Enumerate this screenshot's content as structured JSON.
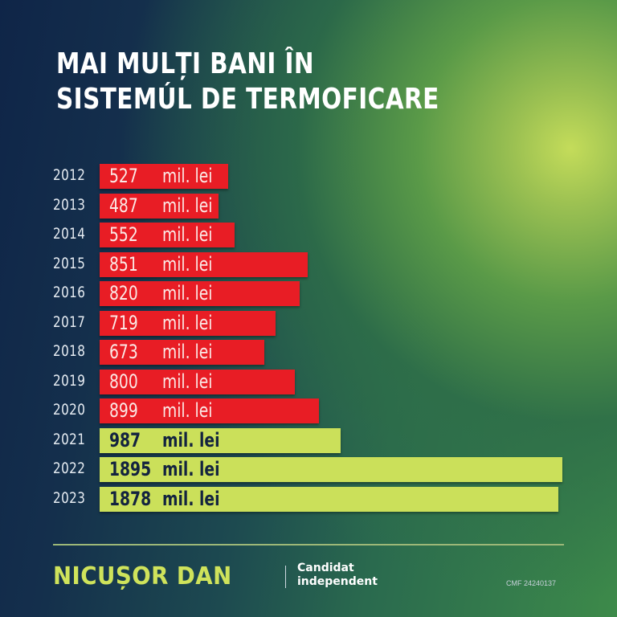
{
  "title": {
    "line1": "MAI MULȚI BANI ÎN",
    "line2": "SISTEMÚL DE TERMOFICARE"
  },
  "colors": {
    "red_bar": "#e81d25",
    "lime_bar": "#cbe05a",
    "background_dark": "#0f2548",
    "background_glow": "#c4dc5a",
    "brand": "#cfe35b"
  },
  "rows": [
    {
      "year": "2012",
      "value": "527",
      "unit": "mil. lei",
      "color": "red"
    },
    {
      "year": "2013",
      "value": "487",
      "unit": "mil. lei",
      "color": "red"
    },
    {
      "year": "2014",
      "value": "552",
      "unit": "mil. lei",
      "color": "red"
    },
    {
      "year": "2015",
      "value": "851",
      "unit": "mil. lei",
      "color": "red"
    },
    {
      "year": "2016",
      "value": "820",
      "unit": "mil. lei",
      "color": "red"
    },
    {
      "year": "2017",
      "value": "719",
      "unit": "mil. lei",
      "color": "red"
    },
    {
      "year": "2018",
      "value": "673",
      "unit": "mil. lei",
      "color": "red"
    },
    {
      "year": "2019",
      "value": "800",
      "unit": "mil. lei",
      "color": "red"
    },
    {
      "year": "2020",
      "value": "899",
      "unit": "mil. lei",
      "color": "red"
    },
    {
      "year": "2021",
      "value": "987",
      "unit": "mil. lei",
      "color": "lime"
    },
    {
      "year": "2022",
      "value": "1895",
      "unit": "mil. lei",
      "color": "lime"
    },
    {
      "year": "2023",
      "value": "1878",
      "unit": "mil. lei",
      "color": "lime"
    }
  ],
  "footer": {
    "brand": "NICUȘOR DAN",
    "tagline_line1": "Candidat",
    "tagline_line2": "independent",
    "cmf": "CMF 24240137"
  },
  "chart_data": {
    "type": "bar",
    "orientation": "horizontal",
    "title": "MAI MULȚI BANI ÎN SISTEMÚL DE TERMOFICARE",
    "xlabel": "",
    "ylabel": "",
    "unit": "mil. lei",
    "categories": [
      "2012",
      "2013",
      "2014",
      "2015",
      "2016",
      "2017",
      "2018",
      "2019",
      "2020",
      "2021",
      "2022",
      "2023"
    ],
    "values": [
      527,
      487,
      552,
      851,
      820,
      719,
      673,
      800,
      899,
      987,
      1895,
      1878
    ],
    "bar_colors": [
      "#e81d25",
      "#e81d25",
      "#e81d25",
      "#e81d25",
      "#e81d25",
      "#e81d25",
      "#e81d25",
      "#e81d25",
      "#e81d25",
      "#cbe05a",
      "#cbe05a",
      "#cbe05a"
    ],
    "data_labels": true,
    "grid": false,
    "legend": null
  }
}
